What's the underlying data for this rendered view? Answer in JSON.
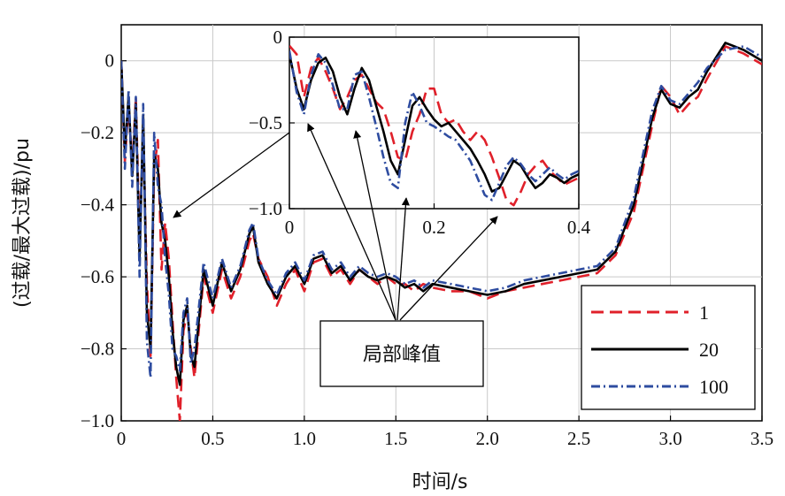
{
  "chart_data": {
    "type": "line",
    "xlabel": "时间/s",
    "ylabel": "(过载/最大过载)/pu",
    "xlim": [
      0,
      3.5
    ],
    "ylim": [
      -1.0,
      0.1
    ],
    "xticks": [
      "0",
      "0.5",
      "1.0",
      "1.5",
      "2.0",
      "2.5",
      "3.0",
      "3.5"
    ],
    "yticks": [
      "0",
      "−0.2",
      "−0.4",
      "−0.6",
      "−0.8",
      "−1.0"
    ],
    "grid": true,
    "legend_position": "lower-right",
    "annotation": "局部峰值",
    "series": [
      {
        "name": "1",
        "color": "#e0202a",
        "dash": "dashed",
        "x": [
          0,
          0.02,
          0.04,
          0.06,
          0.08,
          0.1,
          0.12,
          0.14,
          0.16,
          0.18,
          0.2,
          0.22,
          0.24,
          0.26,
          0.28,
          0.3,
          0.32,
          0.34,
          0.36,
          0.38,
          0.4,
          0.45,
          0.5,
          0.55,
          0.6,
          0.65,
          0.7,
          0.72,
          0.75,
          0.8,
          0.85,
          0.9,
          0.95,
          1.0,
          1.05,
          1.1,
          1.15,
          1.2,
          1.25,
          1.3,
          1.35,
          1.4,
          1.45,
          1.5,
          1.55,
          1.6,
          1.65,
          1.7,
          1.8,
          1.9,
          2.0,
          2.1,
          2.2,
          2.3,
          2.4,
          2.5,
          2.6,
          2.7,
          2.8,
          2.9,
          2.95,
          3.0,
          3.05,
          3.1,
          3.15,
          3.2,
          3.3,
          3.4,
          3.5
        ],
        "y": [
          0,
          -0.28,
          -0.12,
          -0.3,
          -0.1,
          -0.5,
          -0.2,
          -0.62,
          -0.82,
          -0.3,
          -0.22,
          -0.58,
          -0.45,
          -0.55,
          -0.72,
          -0.88,
          -1.0,
          -0.75,
          -0.7,
          -0.8,
          -0.88,
          -0.6,
          -0.7,
          -0.58,
          -0.66,
          -0.6,
          -0.5,
          -0.48,
          -0.55,
          -0.6,
          -0.68,
          -0.62,
          -0.58,
          -0.64,
          -0.56,
          -0.55,
          -0.6,
          -0.58,
          -0.62,
          -0.58,
          -0.6,
          -0.62,
          -0.6,
          -0.62,
          -0.62,
          -0.64,
          -0.62,
          -0.63,
          -0.64,
          -0.64,
          -0.66,
          -0.64,
          -0.63,
          -0.62,
          -0.61,
          -0.6,
          -0.59,
          -0.54,
          -0.42,
          -0.18,
          -0.07,
          -0.1,
          -0.15,
          -0.12,
          -0.1,
          -0.05,
          0.04,
          0.02,
          -0.01
        ]
      },
      {
        "name": "20",
        "color": "#000000",
        "dash": "solid",
        "x": [
          0,
          0.02,
          0.04,
          0.06,
          0.08,
          0.1,
          0.12,
          0.14,
          0.16,
          0.18,
          0.2,
          0.22,
          0.24,
          0.26,
          0.28,
          0.3,
          0.32,
          0.34,
          0.36,
          0.38,
          0.4,
          0.45,
          0.5,
          0.55,
          0.6,
          0.65,
          0.7,
          0.72,
          0.75,
          0.8,
          0.85,
          0.9,
          0.95,
          1.0,
          1.05,
          1.1,
          1.15,
          1.2,
          1.25,
          1.3,
          1.35,
          1.4,
          1.45,
          1.5,
          1.55,
          1.6,
          1.65,
          1.7,
          1.8,
          1.9,
          2.0,
          2.1,
          2.2,
          2.3,
          2.4,
          2.5,
          2.6,
          2.7,
          2.8,
          2.9,
          2.95,
          3.0,
          3.05,
          3.1,
          3.15,
          3.2,
          3.3,
          3.4,
          3.5
        ],
        "y": [
          0,
          -0.25,
          -0.1,
          -0.32,
          -0.12,
          -0.55,
          -0.15,
          -0.7,
          -0.8,
          -0.26,
          -0.3,
          -0.45,
          -0.5,
          -0.6,
          -0.75,
          -0.85,
          -0.9,
          -0.72,
          -0.68,
          -0.82,
          -0.85,
          -0.58,
          -0.68,
          -0.56,
          -0.64,
          -0.58,
          -0.48,
          -0.46,
          -0.56,
          -0.62,
          -0.66,
          -0.6,
          -0.57,
          -0.62,
          -0.55,
          -0.54,
          -0.59,
          -0.57,
          -0.61,
          -0.58,
          -0.6,
          -0.61,
          -0.6,
          -0.61,
          -0.63,
          -0.62,
          -0.64,
          -0.62,
          -0.63,
          -0.64,
          -0.65,
          -0.64,
          -0.62,
          -0.61,
          -0.6,
          -0.59,
          -0.58,
          -0.53,
          -0.4,
          -0.16,
          -0.08,
          -0.12,
          -0.13,
          -0.1,
          -0.08,
          -0.03,
          0.05,
          0.03,
          0.0
        ]
      },
      {
        "name": "100",
        "color": "#2e4ca0",
        "dash": "dashdot",
        "x": [
          0,
          0.02,
          0.04,
          0.06,
          0.08,
          0.1,
          0.12,
          0.14,
          0.16,
          0.18,
          0.2,
          0.22,
          0.24,
          0.26,
          0.28,
          0.3,
          0.32,
          0.34,
          0.36,
          0.38,
          0.4,
          0.45,
          0.5,
          0.55,
          0.6,
          0.65,
          0.7,
          0.72,
          0.75,
          0.8,
          0.85,
          0.9,
          0.95,
          1.0,
          1.05,
          1.1,
          1.15,
          1.2,
          1.25,
          1.3,
          1.35,
          1.4,
          1.45,
          1.5,
          1.55,
          1.6,
          1.65,
          1.7,
          1.8,
          1.9,
          2.0,
          2.1,
          2.2,
          2.3,
          2.4,
          2.5,
          2.6,
          2.7,
          2.8,
          2.9,
          2.95,
          3.0,
          3.05,
          3.1,
          3.15,
          3.2,
          3.3,
          3.4,
          3.5
        ],
        "y": [
          0,
          -0.3,
          -0.08,
          -0.35,
          -0.1,
          -0.6,
          -0.12,
          -0.78,
          -0.88,
          -0.2,
          -0.35,
          -0.4,
          -0.55,
          -0.65,
          -0.8,
          -0.82,
          -0.86,
          -0.7,
          -0.66,
          -0.84,
          -0.8,
          -0.56,
          -0.66,
          -0.55,
          -0.63,
          -0.57,
          -0.47,
          -0.45,
          -0.55,
          -0.61,
          -0.65,
          -0.59,
          -0.56,
          -0.61,
          -0.54,
          -0.53,
          -0.58,
          -0.56,
          -0.6,
          -0.57,
          -0.59,
          -0.6,
          -0.59,
          -0.6,
          -0.62,
          -0.61,
          -0.63,
          -0.61,
          -0.62,
          -0.63,
          -0.64,
          -0.63,
          -0.61,
          -0.6,
          -0.59,
          -0.58,
          -0.57,
          -0.52,
          -0.38,
          -0.14,
          -0.07,
          -0.11,
          -0.12,
          -0.09,
          -0.06,
          -0.02,
          0.03,
          0.04,
          0.01
        ]
      }
    ],
    "inset": {
      "xlim": [
        0,
        0.4
      ],
      "ylim": [
        -1.0,
        0.0
      ],
      "xticks": [
        "0",
        "0.2",
        "0.4"
      ],
      "yticks": [
        "0",
        "−0.5",
        "−1.0"
      ],
      "series": [
        {
          "name": "1",
          "x": [
            0,
            0.01,
            0.02,
            0.03,
            0.04,
            0.05,
            0.06,
            0.07,
            0.08,
            0.09,
            0.1,
            0.11,
            0.12,
            0.13,
            0.14,
            0.15,
            0.16,
            0.17,
            0.18,
            0.19,
            0.2,
            0.21,
            0.22,
            0.23,
            0.24,
            0.25,
            0.26,
            0.27,
            0.28,
            0.29,
            0.3,
            0.31,
            0.32,
            0.33,
            0.34,
            0.35,
            0.36,
            0.37,
            0.38,
            0.39,
            0.4
          ],
          "y": [
            -0.05,
            -0.1,
            -0.35,
            -0.18,
            -0.12,
            -0.2,
            -0.3,
            -0.42,
            -0.35,
            -0.25,
            -0.22,
            -0.3,
            -0.38,
            -0.42,
            -0.55,
            -0.7,
            -0.72,
            -0.55,
            -0.45,
            -0.3,
            -0.3,
            -0.45,
            -0.5,
            -0.48,
            -0.55,
            -0.6,
            -0.55,
            -0.6,
            -0.7,
            -0.82,
            -0.95,
            -0.98,
            -0.9,
            -0.8,
            -0.75,
            -0.72,
            -0.78,
            -0.82,
            -0.86,
            -0.84,
            -0.82
          ]
        },
        {
          "name": "20",
          "x": [
            0,
            0.01,
            0.02,
            0.03,
            0.04,
            0.05,
            0.06,
            0.07,
            0.08,
            0.09,
            0.1,
            0.11,
            0.12,
            0.13,
            0.14,
            0.15,
            0.16,
            0.17,
            0.18,
            0.19,
            0.2,
            0.21,
            0.22,
            0.23,
            0.24,
            0.25,
            0.26,
            0.27,
            0.28,
            0.29,
            0.3,
            0.31,
            0.32,
            0.33,
            0.34,
            0.35,
            0.36,
            0.37,
            0.38,
            0.39,
            0.4
          ],
          "y": [
            -0.1,
            -0.3,
            -0.42,
            -0.25,
            -0.15,
            -0.12,
            -0.2,
            -0.35,
            -0.45,
            -0.3,
            -0.18,
            -0.25,
            -0.4,
            -0.55,
            -0.72,
            -0.8,
            -0.6,
            -0.4,
            -0.35,
            -0.42,
            -0.48,
            -0.52,
            -0.5,
            -0.55,
            -0.6,
            -0.65,
            -0.72,
            -0.8,
            -0.9,
            -0.88,
            -0.8,
            -0.72,
            -0.75,
            -0.82,
            -0.88,
            -0.85,
            -0.8,
            -0.82,
            -0.85,
            -0.82,
            -0.8
          ]
        },
        {
          "name": "100",
          "x": [
            0,
            0.01,
            0.02,
            0.03,
            0.04,
            0.05,
            0.06,
            0.07,
            0.08,
            0.09,
            0.1,
            0.11,
            0.12,
            0.13,
            0.14,
            0.15,
            0.16,
            0.17,
            0.18,
            0.19,
            0.2,
            0.21,
            0.22,
            0.23,
            0.24,
            0.25,
            0.26,
            0.27,
            0.28,
            0.29,
            0.3,
            0.31,
            0.32,
            0.33,
            0.34,
            0.35,
            0.36,
            0.37,
            0.38,
            0.39,
            0.4
          ],
          "y": [
            -0.08,
            -0.32,
            -0.45,
            -0.22,
            -0.1,
            -0.15,
            -0.28,
            -0.42,
            -0.42,
            -0.22,
            -0.2,
            -0.35,
            -0.52,
            -0.7,
            -0.85,
            -0.88,
            -0.5,
            -0.32,
            -0.4,
            -0.5,
            -0.52,
            -0.55,
            -0.58,
            -0.6,
            -0.66,
            -0.72,
            -0.82,
            -0.92,
            -0.95,
            -0.85,
            -0.75,
            -0.7,
            -0.74,
            -0.8,
            -0.84,
            -0.8,
            -0.76,
            -0.8,
            -0.83,
            -0.8,
            -0.78
          ]
        }
      ]
    }
  }
}
